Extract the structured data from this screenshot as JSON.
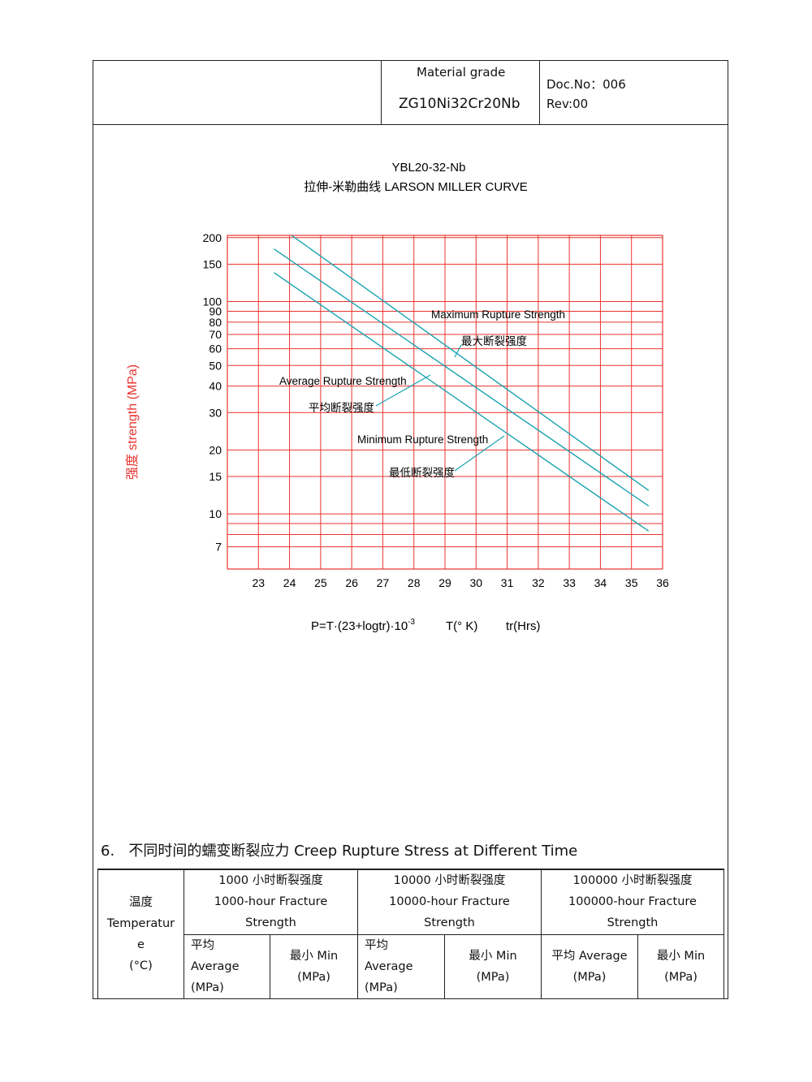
{
  "header": {
    "material_grade_label": "Material grade",
    "material_grade_value": "ZG10Ni32Cr20Nb",
    "doc_no": "Doc.No：006",
    "rev": "Rev:00"
  },
  "chart_data": {
    "type": "line",
    "title": "YBL20-32-Nb",
    "subtitle": "拉伸-米勒曲线 LARSON MILLER CURVE",
    "ylabel": "强度 strength (MPa)",
    "xlabel": "P=T·(23+logtr)·10",
    "xlabel_exponent": "-3",
    "xlabel_T": "T(° K)",
    "xlabel_tr": "tr(Hrs)",
    "x_ticks": [
      "23",
      "24",
      "25",
      "26",
      "27",
      "28",
      "29",
      "30",
      "31",
      "32",
      "33",
      "34",
      "35",
      "36"
    ],
    "y_ticks": [
      "200",
      "150",
      "100",
      "90",
      "80",
      "70",
      "60",
      "50",
      "40",
      "30",
      "20",
      "15",
      "10",
      "7"
    ],
    "y_scale": "log",
    "xlim": [
      22,
      36
    ],
    "ylim": [
      5.5,
      205
    ],
    "grid": true,
    "grid_color": "#e8342f",
    "line_color": "#1aa3b0",
    "ylabel_color": "#e8342f",
    "series": [
      {
        "name": "Maximum Rupture Strength",
        "name_cn": "最大断裂强度",
        "x": [
          23.87,
          35.55
        ],
        "y": [
          215,
          12.9
        ]
      },
      {
        "name": "Average Rupture Strength",
        "name_cn": "平均断裂强度",
        "x": [
          23.5,
          35.55
        ],
        "y": [
          177,
          10.9
        ]
      },
      {
        "name": "Minimum Rupture Strength",
        "name_cn": "最低断裂强度",
        "x": [
          23.5,
          35.55
        ],
        "y": [
          137,
          8.3
        ]
      }
    ]
  },
  "section": {
    "number": "6.",
    "title": "不同时间的蠕变断裂应力 Creep Rupture Stress at Different Time"
  },
  "table": {
    "temperature": [
      "温度",
      "Temperatur",
      "e",
      "(°C)"
    ],
    "groups": [
      {
        "lines": [
          "1000 小时断裂强度",
          "1000-hour Fracture",
          "Strength"
        ]
      },
      {
        "lines": [
          "10000 小时断裂强度",
          "10000-hour Fracture",
          "Strength"
        ]
      },
      {
        "lines": [
          "100000 小时断裂强度",
          "100000-hour Fracture",
          "Strength"
        ]
      }
    ],
    "sub": {
      "avg1": [
        "平均",
        "Average",
        "(MPa)"
      ],
      "min1": [
        "最小 Min",
        "(MPa)"
      ],
      "avg2": [
        "平均",
        "Average",
        "(MPa)"
      ],
      "min2": [
        "最小 Min",
        "(MPa)"
      ],
      "avg3": [
        "平均 Average",
        "(MPa)"
      ],
      "min3": [
        "最小 Min",
        "(MPa)"
      ]
    }
  }
}
